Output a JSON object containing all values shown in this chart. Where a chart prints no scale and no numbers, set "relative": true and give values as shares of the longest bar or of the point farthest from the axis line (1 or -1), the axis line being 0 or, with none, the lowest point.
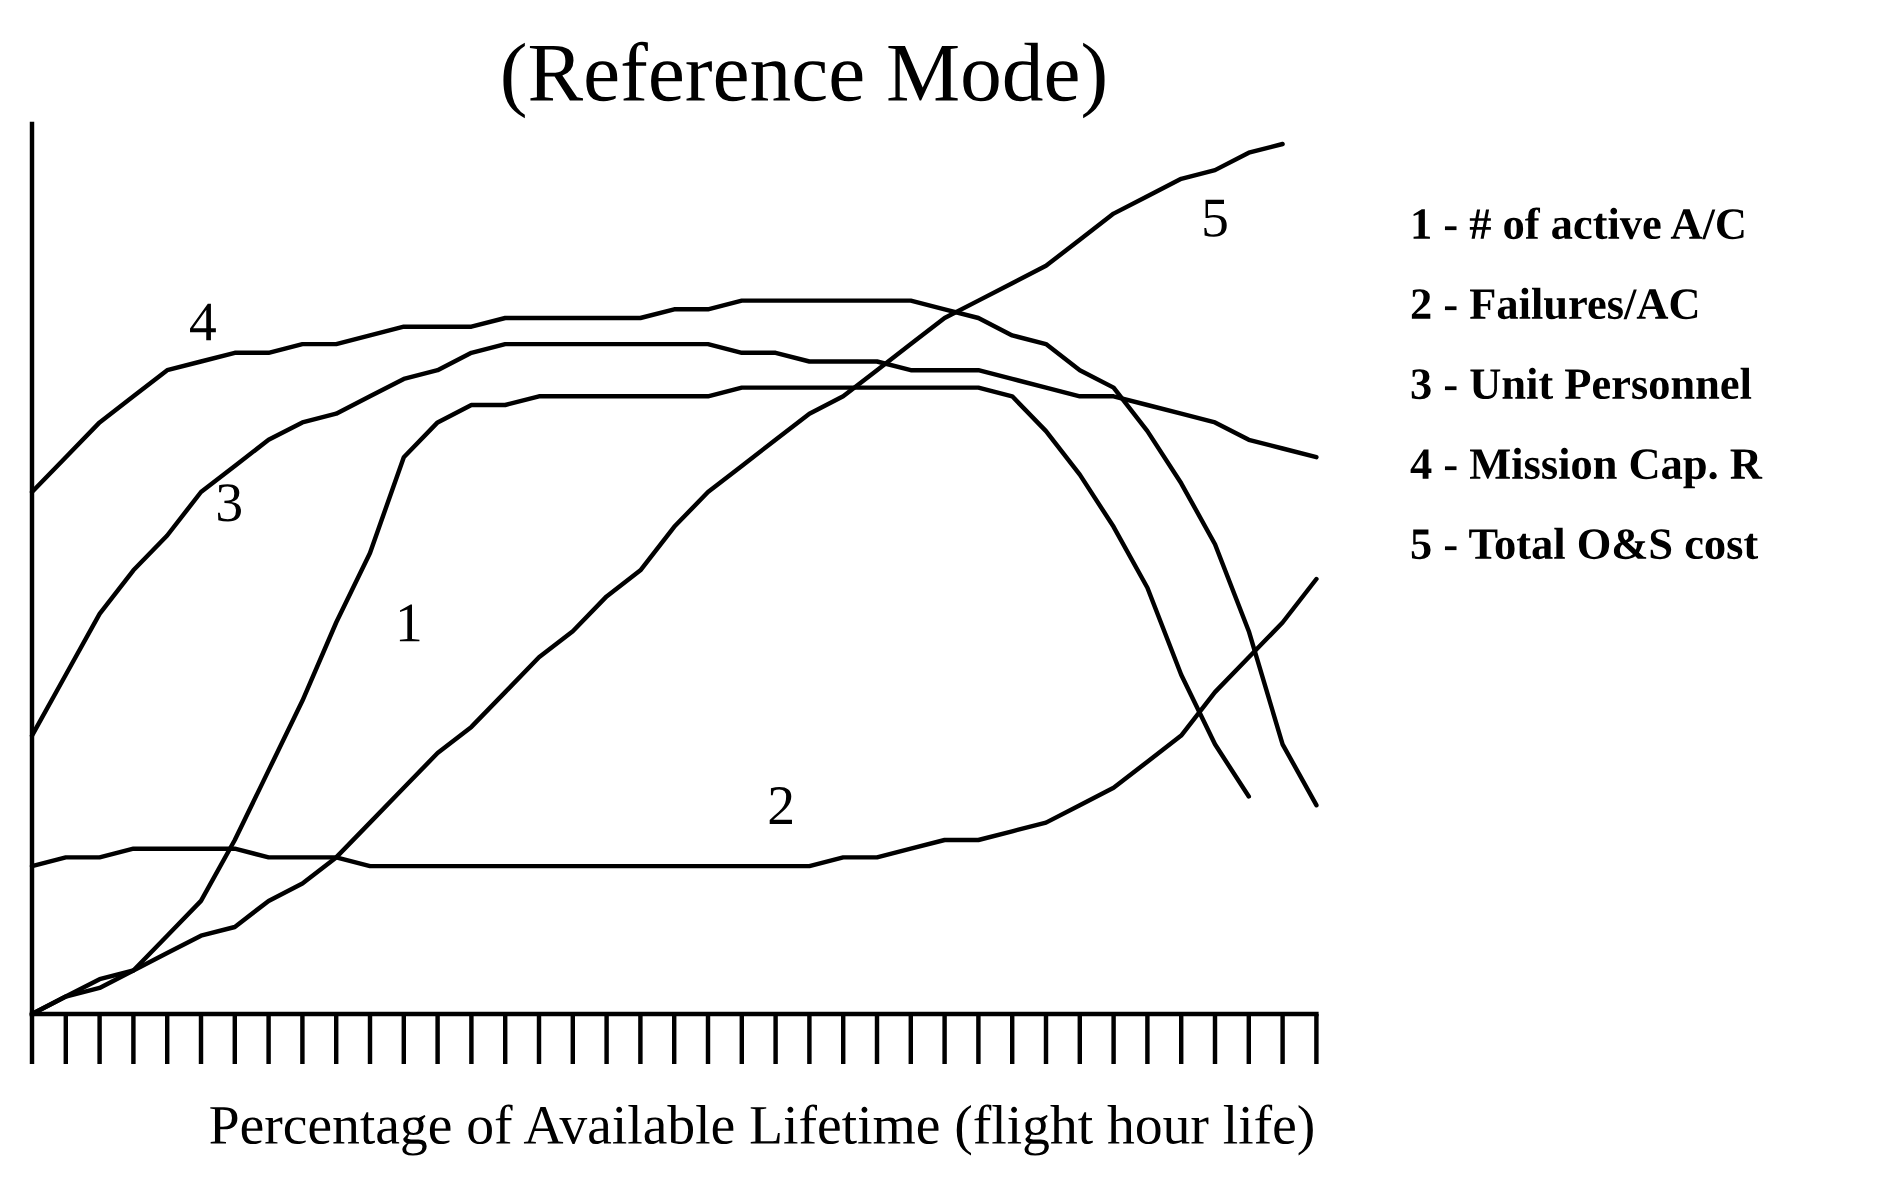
{
  "chart_data": {
    "type": "line",
    "title": "(Reference Mode)",
    "xlabel": "Percentage of Available Lifetime (flight hour life)",
    "relative": true,
    "categories": [
      null,
      null,
      null,
      null,
      null,
      null,
      null,
      null,
      null,
      null,
      null,
      null,
      null,
      null,
      null,
      null,
      null,
      null,
      null,
      null,
      null,
      null,
      null,
      null,
      null,
      null,
      null,
      null,
      null,
      null,
      null,
      null,
      null,
      null,
      null,
      null,
      null,
      null,
      null
    ],
    "series": [
      {
        "name": "1",
        "color": "#000000",
        "values": [
          0,
          0.02,
          0.03,
          0.05,
          0.09,
          0.13,
          0.2,
          0.28,
          0.36,
          0.45,
          0.53,
          0.64,
          0.68,
          0.7,
          0.7,
          0.71,
          0.71,
          0.71,
          0.71,
          0.71,
          0.71,
          0.72,
          0.72,
          0.72,
          0.72,
          0.72,
          0.72,
          0.72,
          0.72,
          0.71,
          0.67,
          0.62,
          0.56,
          0.49,
          0.39,
          0.31,
          0.25,
          null,
          null
        ]
      },
      {
        "name": "2",
        "color": "#000000",
        "values": [
          0.17,
          0.18,
          0.18,
          0.19,
          0.19,
          0.19,
          0.19,
          0.18,
          0.18,
          0.18,
          0.17,
          0.17,
          0.17,
          0.17,
          0.17,
          0.17,
          0.17,
          0.17,
          0.17,
          0.17,
          0.17,
          0.17,
          0.17,
          0.17,
          0.18,
          0.18,
          0.19,
          0.2,
          0.2,
          0.21,
          0.22,
          0.24,
          0.26,
          0.29,
          0.32,
          0.37,
          0.41,
          0.45,
          0.5
        ]
      },
      {
        "name": "3",
        "color": "#000000",
        "values": [
          0.32,
          0.39,
          0.46,
          0.51,
          0.55,
          0.6,
          0.63,
          0.66,
          0.68,
          0.69,
          0.71,
          0.73,
          0.74,
          0.76,
          0.77,
          0.77,
          0.77,
          0.77,
          0.77,
          0.77,
          0.77,
          0.76,
          0.76,
          0.75,
          0.75,
          0.75,
          0.74,
          0.74,
          0.74,
          0.73,
          0.72,
          0.71,
          0.71,
          0.7,
          0.69,
          0.68,
          0.66,
          0.65,
          0.64
        ]
      },
      {
        "name": "4",
        "color": "#000000",
        "values": [
          0.6,
          0.64,
          0.68,
          0.71,
          0.74,
          0.75,
          0.76,
          0.76,
          0.77,
          0.77,
          0.78,
          0.79,
          0.79,
          0.79,
          0.8,
          0.8,
          0.8,
          0.8,
          0.8,
          0.81,
          0.81,
          0.82,
          0.82,
          0.82,
          0.82,
          0.82,
          0.82,
          0.81,
          0.8,
          0.78,
          0.77,
          0.74,
          0.72,
          0.67,
          0.61,
          0.54,
          0.44,
          0.31,
          0.24
        ]
      },
      {
        "name": "5",
        "color": "#000000",
        "values": [
          0,
          0.02,
          0.04,
          0.05,
          0.07,
          0.09,
          0.1,
          0.13,
          0.15,
          0.18,
          0.22,
          0.26,
          0.3,
          0.33,
          0.37,
          0.41,
          0.44,
          0.48,
          0.51,
          0.56,
          0.6,
          0.63,
          0.66,
          0.69,
          0.71,
          0.74,
          0.77,
          0.8,
          0.82,
          0.84,
          0.86,
          0.89,
          0.92,
          0.94,
          0.96,
          0.97,
          0.99,
          1.0,
          null
        ]
      }
    ],
    "annotations": [
      "1 - # of active A/C",
      "2 - Failures/AC",
      "3 - Unit Personnel",
      "4 - Mission Cap. R",
      "5 - Total O&S cost"
    ]
  }
}
